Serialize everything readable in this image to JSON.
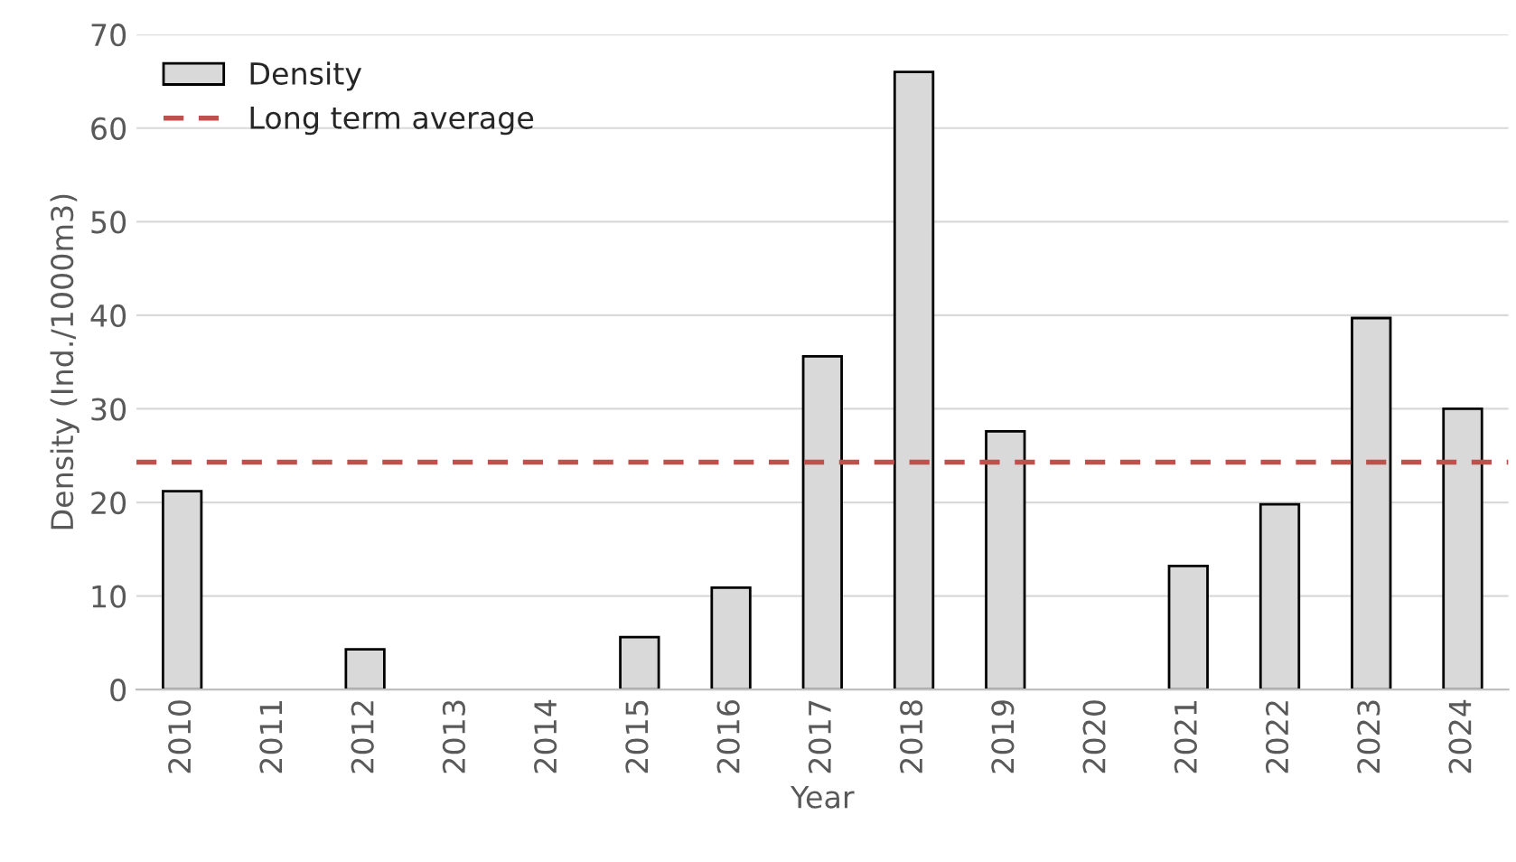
{
  "chart_data": {
    "type": "bar",
    "xlabel": "Year",
    "ylabel": "Density (Ind./1000m3)",
    "categories": [
      "2010",
      "2011",
      "2012",
      "2013",
      "2014",
      "2015",
      "2016",
      "2017",
      "2018",
      "2019",
      "2020",
      "2021",
      "2022",
      "2023",
      "2024"
    ],
    "series": [
      {
        "name": "Density",
        "color": "#d9d9d9",
        "values": [
          21.2,
          0,
          4.3,
          0,
          0,
          5.6,
          10.9,
          35.6,
          66,
          27.6,
          0,
          13.2,
          19.8,
          39.7,
          30
        ]
      }
    ],
    "ylim": [
      0,
      70
    ],
    "yticks": [
      0,
      10,
      20,
      30,
      40,
      50,
      60,
      70
    ],
    "grid": "y",
    "legend": "top left",
    "ref_lines": [
      {
        "axis": "y",
        "value": 24.3,
        "label": "Long term average",
        "color": "#c0504d",
        "line_style": "dashed"
      }
    ]
  }
}
